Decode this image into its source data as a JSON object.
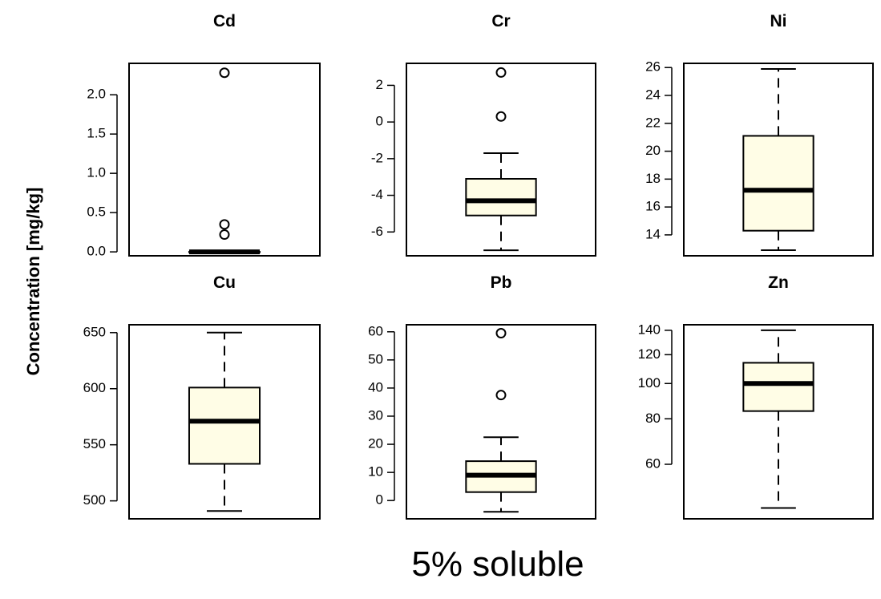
{
  "ylabel": "Concentration [mg/kg]",
  "caption": "5% soluble",
  "colors": {
    "box_fill": "#fffde6",
    "stroke": "#000000"
  },
  "chart_data": [
    {
      "type": "boxplot",
      "title": "Cd",
      "ylim": [
        -0.05,
        2.4
      ],
      "ticks": [
        0.0,
        0.5,
        1.0,
        1.5,
        2.0
      ],
      "tick_labels": [
        "0.0",
        "0.5",
        "1.0",
        "1.5",
        "2.0"
      ],
      "whisker_low": 0.0,
      "q1": 0.0,
      "median": 0.0,
      "q3": 0.0,
      "whisker_high": 0.0,
      "outliers": [
        0.22,
        0.35,
        2.28
      ]
    },
    {
      "type": "boxplot",
      "title": "Cr",
      "ylim": [
        -7.3,
        3.2
      ],
      "ticks": [
        -6,
        -4,
        -2,
        0,
        2
      ],
      "tick_labels": [
        "-6",
        "-4",
        "-2",
        "0",
        "2"
      ],
      "whisker_low": -7.0,
      "q1": -5.1,
      "median": -4.3,
      "q3": -3.1,
      "whisker_high": -1.7,
      "outliers": [
        0.3,
        2.7
      ]
    },
    {
      "type": "boxplot",
      "title": "Ni",
      "ylim": [
        12.5,
        26.3
      ],
      "ticks": [
        14,
        16,
        18,
        20,
        22,
        24,
        26
      ],
      "tick_labels": [
        "14",
        "16",
        "18",
        "20",
        "22",
        "24",
        "26"
      ],
      "whisker_low": 12.9,
      "q1": 14.3,
      "median": 17.2,
      "q3": 21.1,
      "whisker_high": 25.9,
      "outliers": []
    },
    {
      "type": "boxplot",
      "title": "Cu",
      "ylim": [
        484,
        657
      ],
      "ticks": [
        500,
        550,
        600,
        650
      ],
      "tick_labels": [
        "500",
        "550",
        "600",
        "650"
      ],
      "whisker_low": 491,
      "q1": 533,
      "median": 571,
      "q3": 601,
      "whisker_high": 650,
      "outliers": []
    },
    {
      "type": "boxplot",
      "title": "Pb",
      "ylim": [
        -6.5,
        62.5
      ],
      "ticks": [
        0,
        10,
        20,
        30,
        40,
        50,
        60
      ],
      "tick_labels": [
        "0",
        "10",
        "20",
        "30",
        "40",
        "50",
        "60"
      ],
      "whisker_low": -4.0,
      "q1": 3.0,
      "median": 9.0,
      "q3": 14.0,
      "whisker_high": 22.5,
      "outliers": [
        37.5,
        59.5
      ]
    },
    {
      "type": "boxplot",
      "title": "Zn",
      "scale": "log",
      "ylim": [
        42.5,
        145
      ],
      "ticks": [
        60,
        80,
        100,
        120,
        140
      ],
      "tick_labels": [
        "60",
        "80",
        "100",
        "120",
        "140"
      ],
      "whisker_low": 45.5,
      "q1": 84,
      "median": 100,
      "q3": 114,
      "whisker_high": 140,
      "outliers": []
    }
  ]
}
